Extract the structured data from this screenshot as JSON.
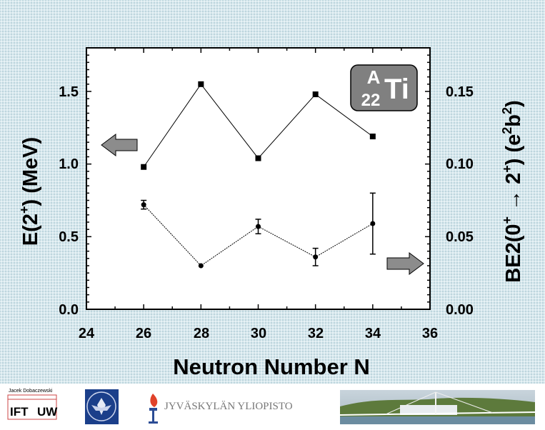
{
  "chart_data": {
    "type": "line",
    "xlabel": "Neutron Number N",
    "y_left_label_parts": {
      "pre": "E(2",
      "sup": "+",
      "post": ") (MeV)"
    },
    "y_right_label_parts": {
      "pre": "BE2(0",
      "sup1": "+",
      "arrow": " → 2",
      "sup2": "+",
      "mid": ") (e",
      "sup3": "2",
      "mid2": "b",
      "sup4": "2",
      "post": ")"
    },
    "xlim": [
      24,
      36
    ],
    "ylim_left": [
      0,
      1.8
    ],
    "ylim_right": [
      0,
      0.18
    ],
    "x_ticks": [
      "24",
      "26",
      "28",
      "30",
      "32",
      "34",
      "36"
    ],
    "y_left_ticks": [
      "0.0",
      "0.5",
      "1.0",
      "1.5"
    ],
    "y_right_ticks": [
      "0.00",
      "0.05",
      "0.10",
      "0.15"
    ],
    "series": [
      {
        "axis": "left",
        "marker": "square",
        "x": [
          26,
          28,
          30,
          32,
          34
        ],
        "y": [
          0.98,
          1.55,
          1.04,
          1.48,
          1.19
        ]
      },
      {
        "axis": "right",
        "marker": "circle",
        "x": [
          26,
          28,
          30,
          32,
          34
        ],
        "y": [
          0.072,
          0.03,
          0.057,
          0.036,
          0.059
        ],
        "err": [
          0.003,
          0.0,
          0.005,
          0.006,
          0.021
        ]
      }
    ],
    "annotation": {
      "mass_label": "A",
      "z_label": "22",
      "element": "Ti"
    },
    "arrows": [
      {
        "direction": "left",
        "axis": "left"
      },
      {
        "direction": "right",
        "axis": "right"
      }
    ]
  },
  "footer": {
    "author": "Jacek Dobaczewski",
    "logo_ift": "IFT",
    "logo_uw": "UW",
    "jyu_name": "JYVÄSKYLÄN YLIOPISTO"
  },
  "colors": {
    "slide_bg": "#d7e8ee",
    "plot_bg": "#ffffff",
    "badge_fill": "#808080",
    "arrow_fill": "#8c8c8c",
    "seal_blue": "#1b3f8a"
  }
}
